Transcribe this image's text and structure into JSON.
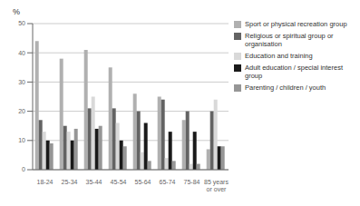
{
  "chart_data": {
    "type": "bar",
    "categories": [
      "18-24",
      "25-34",
      "35-44",
      "45-54",
      "55-64",
      "65-74",
      "75-84",
      "85 years\nor over"
    ],
    "series": [
      {
        "name": "Sport or physical recreation group",
        "color": "#b0b0b0",
        "values": [
          44,
          38,
          41,
          35,
          26,
          25,
          17,
          7
        ]
      },
      {
        "name": "Religious or spiritual group or organisation",
        "color": "#636363",
        "values": [
          17,
          15,
          21,
          21,
          20,
          24,
          20,
          20
        ]
      },
      {
        "name": "Education and training",
        "color": "#d9d9d9",
        "values": [
          13,
          13,
          25,
          16,
          6,
          4,
          2,
          24
        ]
      },
      {
        "name": "Adult education / special interest group",
        "color": "#1a1a1a",
        "values": [
          10,
          10,
          14,
          10,
          16,
          13,
          13,
          8
        ]
      },
      {
        "name": "Parenting / children / youth",
        "color": "#969696",
        "values": [
          9,
          14,
          15,
          8,
          3,
          3,
          2,
          8
        ]
      }
    ],
    "ylabel": "%",
    "ylim": [
      0,
      50
    ],
    "yticks": [
      0,
      10,
      20,
      30,
      40,
      50
    ],
    "grid": true,
    "legend": "right"
  }
}
